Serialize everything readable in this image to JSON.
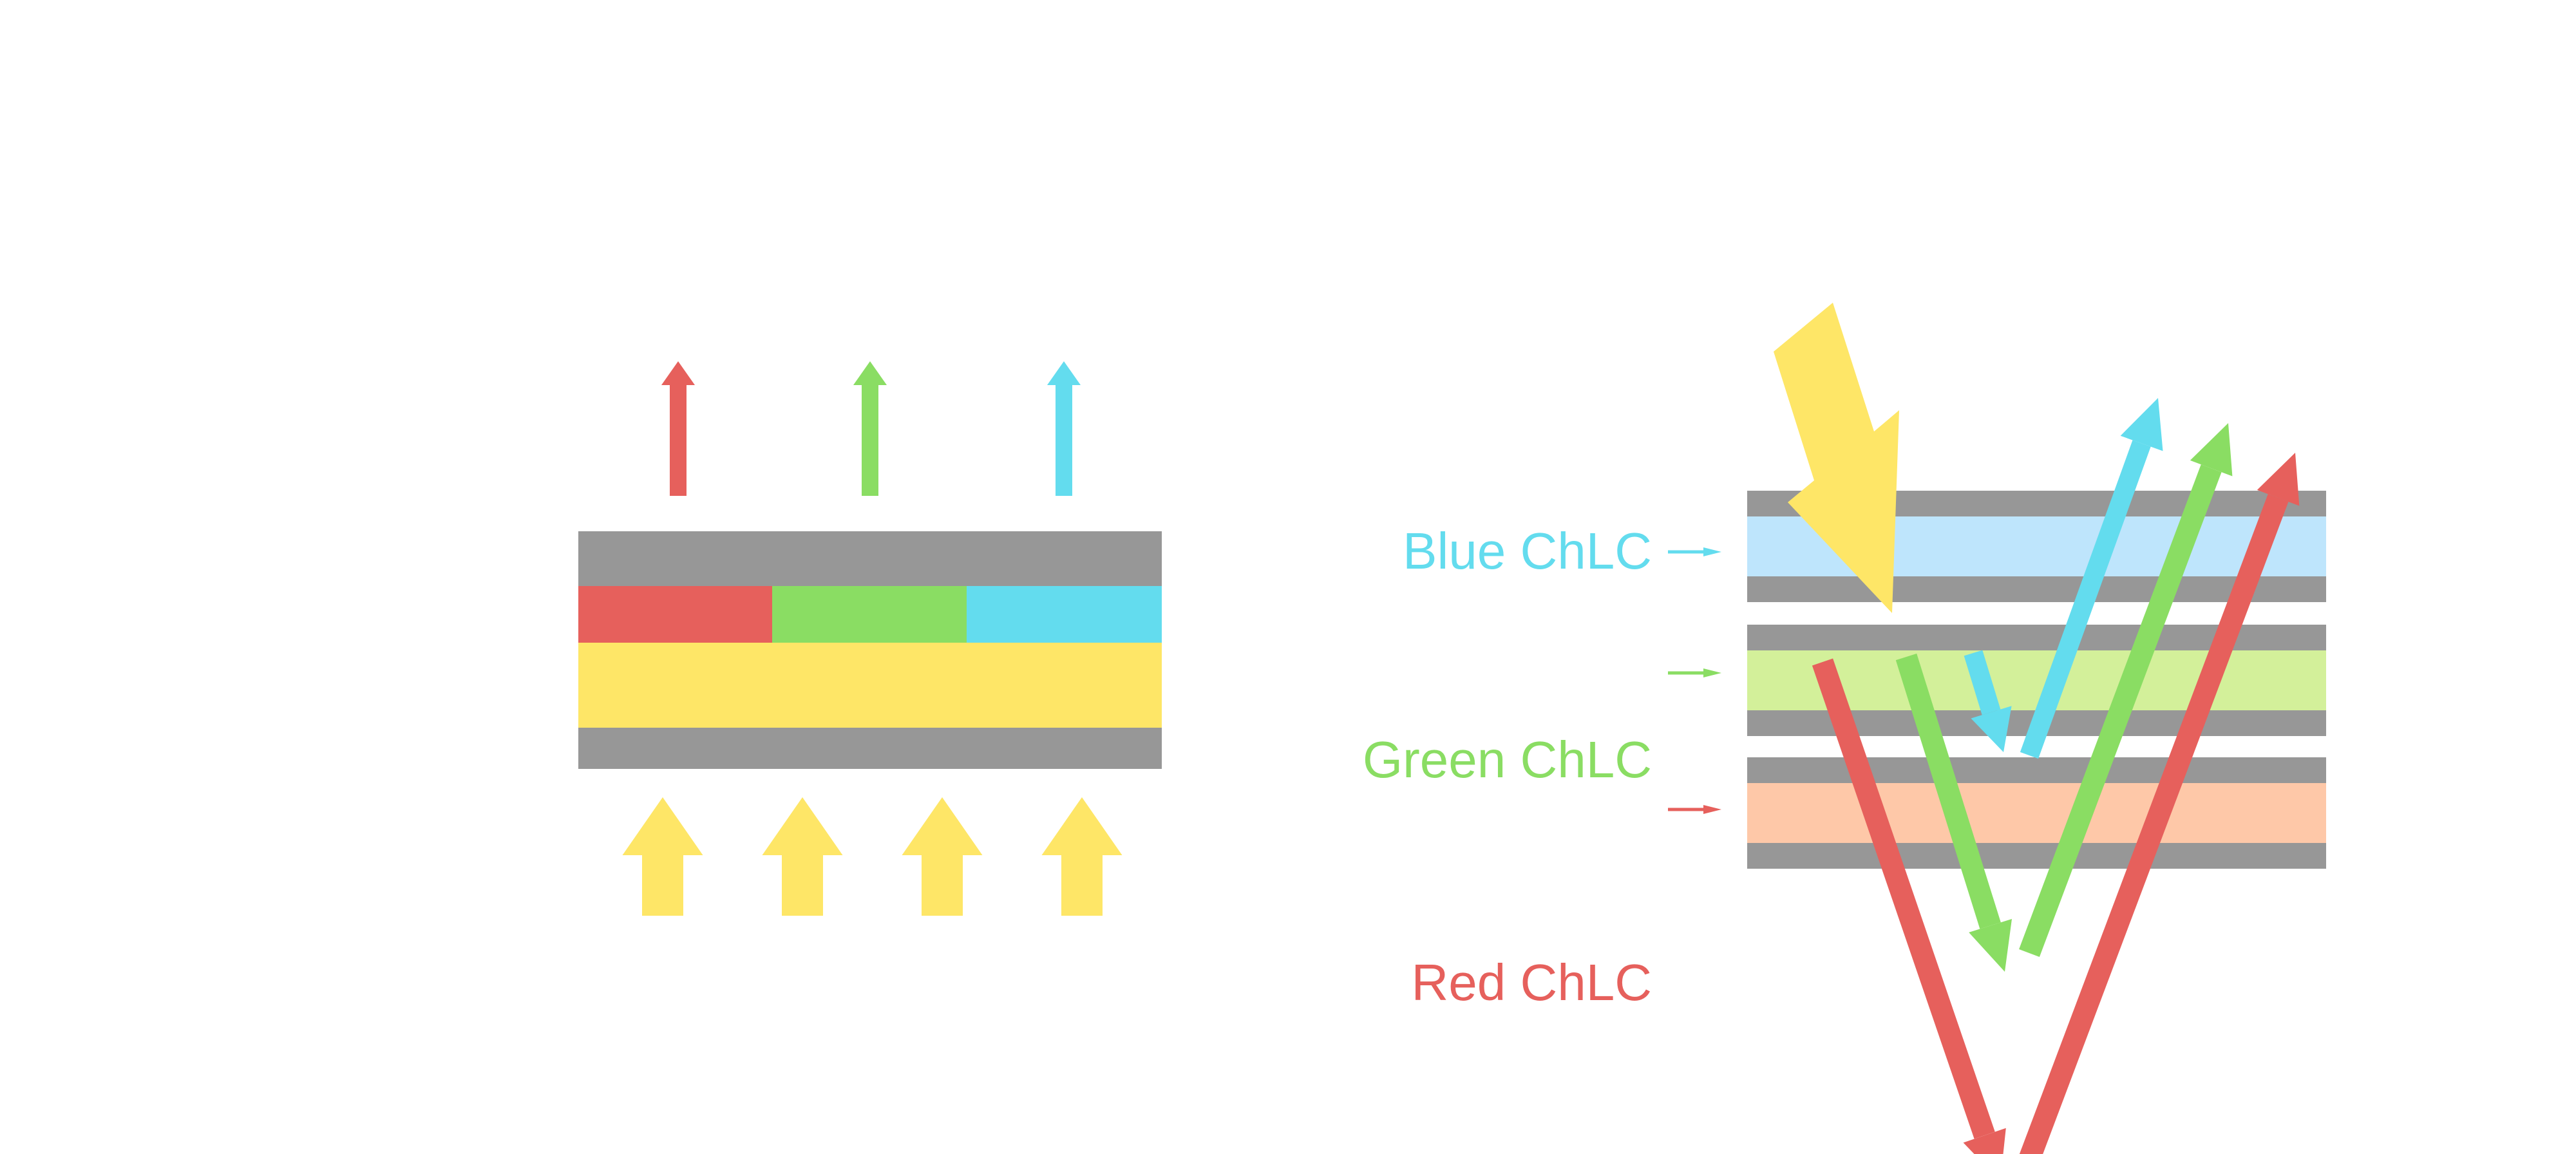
{
  "colors": {
    "gray": "#979797",
    "red": "#E6605C",
    "green": "#8ADD63",
    "cyan": "#63DCEE",
    "yellow": "#FEE667",
    "light_blue": "#BEE5FC",
    "light_green": "#D3F09A",
    "peach": "#FEC8A8"
  },
  "left_diagram": {
    "filter_segments": [
      "red",
      "green",
      "cyan"
    ],
    "emitted_arrows": [
      "red",
      "green",
      "cyan"
    ],
    "backlight_arrow_count": 4
  },
  "right_diagram": {
    "labels": [
      {
        "text": "Blue ChLC",
        "color": "#63DCEE"
      },
      {
        "text": "Green ChLC",
        "color": "#8ADD63"
      },
      {
        "text": "Red ChLC",
        "color": "#E6605C"
      }
    ]
  }
}
